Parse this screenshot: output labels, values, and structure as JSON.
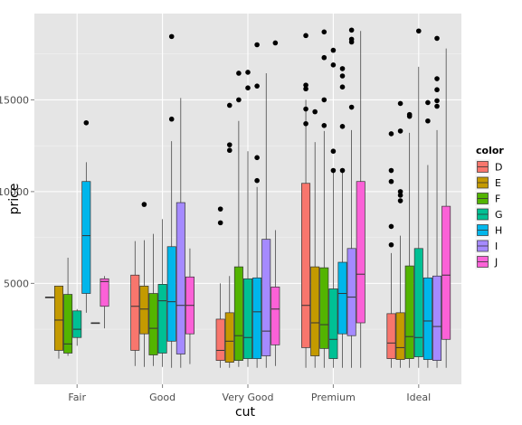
{
  "chart_data": {
    "type": "boxplot",
    "xlabel": "cut",
    "ylabel": "price",
    "categories": [
      "Fair",
      "Good",
      "Very Good",
      "Premium",
      "Ideal"
    ],
    "ylim": [
      -500,
      19700
    ],
    "yticks": [
      5000,
      10000,
      15000
    ],
    "grid": true,
    "legend": {
      "title": "color",
      "placement": "right",
      "entries": [
        {
          "name": "D",
          "color": "#F8766D"
        },
        {
          "name": "E",
          "color": "#C49A00"
        },
        {
          "name": "F",
          "color": "#53B400"
        },
        {
          "name": "G",
          "color": "#00C094"
        },
        {
          "name": "H",
          "color": "#00B6EB"
        },
        {
          "name": "I",
          "color": "#A58AFF"
        },
        {
          "name": "J",
          "color": "#FB61D7"
        }
      ]
    },
    "groups": [
      {
        "category": "Fair",
        "boxes": [
          {
            "color": "D",
            "whisker_low": 4250,
            "q1": 4250,
            "median": 4250,
            "q3": 4250,
            "whisker_high": 4250,
            "outliers": []
          },
          {
            "color": "E",
            "whisker_low": 900,
            "q1": 1350,
            "median": 3000,
            "q3": 4850,
            "whisker_high": 4850,
            "outliers": []
          },
          {
            "color": "F",
            "whisker_low": 1050,
            "q1": 1200,
            "median": 1700,
            "q3": 4400,
            "whisker_high": 6400,
            "outliers": []
          },
          {
            "color": "G",
            "whisker_low": 1600,
            "q1": 2050,
            "median": 2500,
            "q3": 3500,
            "whisker_high": 3600,
            "outliers": []
          },
          {
            "color": "H",
            "whisker_low": 3400,
            "q1": 4450,
            "median": 7600,
            "q3": 10550,
            "whisker_high": 11600,
            "outliers": [
              13750
            ]
          },
          {
            "color": "I",
            "whisker_low": 2850,
            "q1": 2850,
            "median": 2850,
            "q3": 2850,
            "whisker_high": 2850,
            "outliers": []
          },
          {
            "color": "J",
            "whisker_low": 2550,
            "q1": 3750,
            "median": 5100,
            "q3": 5250,
            "whisker_high": 5400,
            "outliers": []
          }
        ]
      },
      {
        "category": "Good",
        "boxes": [
          {
            "color": "D",
            "whisker_low": 500,
            "q1": 1350,
            "median": 3750,
            "q3": 5450,
            "whisker_high": 7300,
            "outliers": []
          },
          {
            "color": "E",
            "whisker_low": 450,
            "q1": 2250,
            "median": 3600,
            "q3": 4850,
            "whisker_high": 7350,
            "outliers": [
              9300
            ]
          },
          {
            "color": "F",
            "whisker_low": 500,
            "q1": 1100,
            "median": 2550,
            "q3": 4450,
            "whisker_high": 7700,
            "outliers": []
          },
          {
            "color": "G",
            "whisker_low": 450,
            "q1": 1200,
            "median": 4050,
            "q3": 4950,
            "whisker_high": 8500,
            "outliers": []
          },
          {
            "color": "H",
            "whisker_low": 400,
            "q1": 1850,
            "median": 4000,
            "q3": 7000,
            "whisker_high": 12750,
            "outliers": [
              13950,
              18450
            ]
          },
          {
            "color": "I",
            "whisker_low": 400,
            "q1": 1150,
            "median": 3800,
            "q3": 9400,
            "whisker_high": 15100,
            "outliers": []
          },
          {
            "color": "J",
            "whisker_low": 600,
            "q1": 2250,
            "median": 3800,
            "q3": 5350,
            "whisker_high": 6900,
            "outliers": []
          }
        ]
      },
      {
        "category": "Very Good",
        "boxes": [
          {
            "color": "D",
            "whisker_low": 400,
            "q1": 800,
            "median": 1350,
            "q3": 3050,
            "whisker_high": 5000,
            "outliers": [
              8300,
              9050
            ]
          },
          {
            "color": "E",
            "whisker_low": 400,
            "q1": 700,
            "median": 1850,
            "q3": 3400,
            "whisker_high": 5400,
            "outliers": [
              12250,
              12550,
              14700
            ]
          },
          {
            "color": "F",
            "whisker_low": 450,
            "q1": 800,
            "median": 2150,
            "q3": 5900,
            "whisker_high": 13850,
            "outliers": [
              15000,
              16450
            ]
          },
          {
            "color": "G",
            "whisker_low": 450,
            "q1": 900,
            "median": 2050,
            "q3": 5250,
            "whisker_high": 12200,
            "outliers": [
              15650,
              16500
            ]
          },
          {
            "color": "H",
            "whisker_low": 400,
            "q1": 900,
            "median": 3450,
            "q3": 5300,
            "whisker_high": 10250,
            "outliers": [
              10600,
              11850,
              15750,
              18000
            ]
          },
          {
            "color": "I",
            "whisker_low": 400,
            "q1": 1050,
            "median": 2400,
            "q3": 7400,
            "whisker_high": 16450,
            "outliers": []
          },
          {
            "color": "J",
            "whisker_low": 500,
            "q1": 1650,
            "median": 3600,
            "q3": 4800,
            "whisker_high": 7900,
            "outliers": [
              18100
            ]
          }
        ]
      },
      {
        "category": "Premium",
        "boxes": [
          {
            "color": "D",
            "whisker_low": 400,
            "q1": 1500,
            "median": 3800,
            "q3": 10450,
            "whisker_high": 15000,
            "outliers": [
              13700,
              14500,
              15600,
              15800,
              18500
            ]
          },
          {
            "color": "E",
            "whisker_low": 400,
            "q1": 1050,
            "median": 2850,
            "q3": 5900,
            "whisker_high": 12700,
            "outliers": [
              14350
            ]
          },
          {
            "color": "F",
            "whisker_low": 400,
            "q1": 1450,
            "median": 2750,
            "q3": 5850,
            "whisker_high": 13300,
            "outliers": [
              13600,
              15000,
              17300,
              18700
            ]
          },
          {
            "color": "G",
            "whisker_low": 400,
            "q1": 900,
            "median": 1950,
            "q3": 4700,
            "whisker_high": 11100,
            "outliers": [
              11150,
              12200,
              16900,
              17700
            ]
          },
          {
            "color": "H",
            "whisker_low": 400,
            "q1": 2250,
            "median": 4450,
            "q3": 6150,
            "whisker_high": 11100,
            "outliers": [
              11150,
              13550,
              15700,
              16300,
              16700
            ]
          },
          {
            "color": "I",
            "whisker_low": 400,
            "q1": 2150,
            "median": 4250,
            "q3": 6900,
            "whisker_high": 13350,
            "outliers": [
              14600,
              18150,
              18300,
              18800
            ]
          },
          {
            "color": "J",
            "whisker_low": 400,
            "q1": 2850,
            "median": 5500,
            "q3": 10550,
            "whisker_high": 18750,
            "outliers": []
          }
        ]
      },
      {
        "category": "Ideal",
        "boxes": [
          {
            "color": "D",
            "whisker_low": 400,
            "q1": 900,
            "median": 1750,
            "q3": 3350,
            "whisker_high": 6650,
            "outliers": [
              7100,
              8100,
              10550,
              11150,
              13150
            ]
          },
          {
            "color": "E",
            "whisker_low": 400,
            "q1": 850,
            "median": 1500,
            "q3": 3400,
            "whisker_high": 7600,
            "outliers": [
              9500,
              9800,
              10000,
              13300,
              14800
            ]
          },
          {
            "color": "F",
            "whisker_low": 400,
            "q1": 900,
            "median": 2100,
            "q3": 5950,
            "whisker_high": 13200,
            "outliers": [
              14100,
              14200
            ]
          },
          {
            "color": "G",
            "whisker_low": 400,
            "q1": 1000,
            "median": 2050,
            "q3": 6900,
            "whisker_high": 16800,
            "outliers": [
              18750
            ]
          },
          {
            "color": "H",
            "whisker_low": 400,
            "q1": 850,
            "median": 2950,
            "q3": 5300,
            "whisker_high": 11450,
            "outliers": [
              13850,
              14850
            ]
          },
          {
            "color": "I",
            "whisker_low": 400,
            "q1": 800,
            "median": 2650,
            "q3": 5400,
            "whisker_high": 13350,
            "outliers": [
              14650,
              14950,
              15550,
              16150,
              18350
            ]
          },
          {
            "color": "J",
            "whisker_low": 400,
            "q1": 1950,
            "median": 5450,
            "q3": 9200,
            "whisker_high": 17800,
            "outliers": []
          }
        ]
      }
    ]
  }
}
